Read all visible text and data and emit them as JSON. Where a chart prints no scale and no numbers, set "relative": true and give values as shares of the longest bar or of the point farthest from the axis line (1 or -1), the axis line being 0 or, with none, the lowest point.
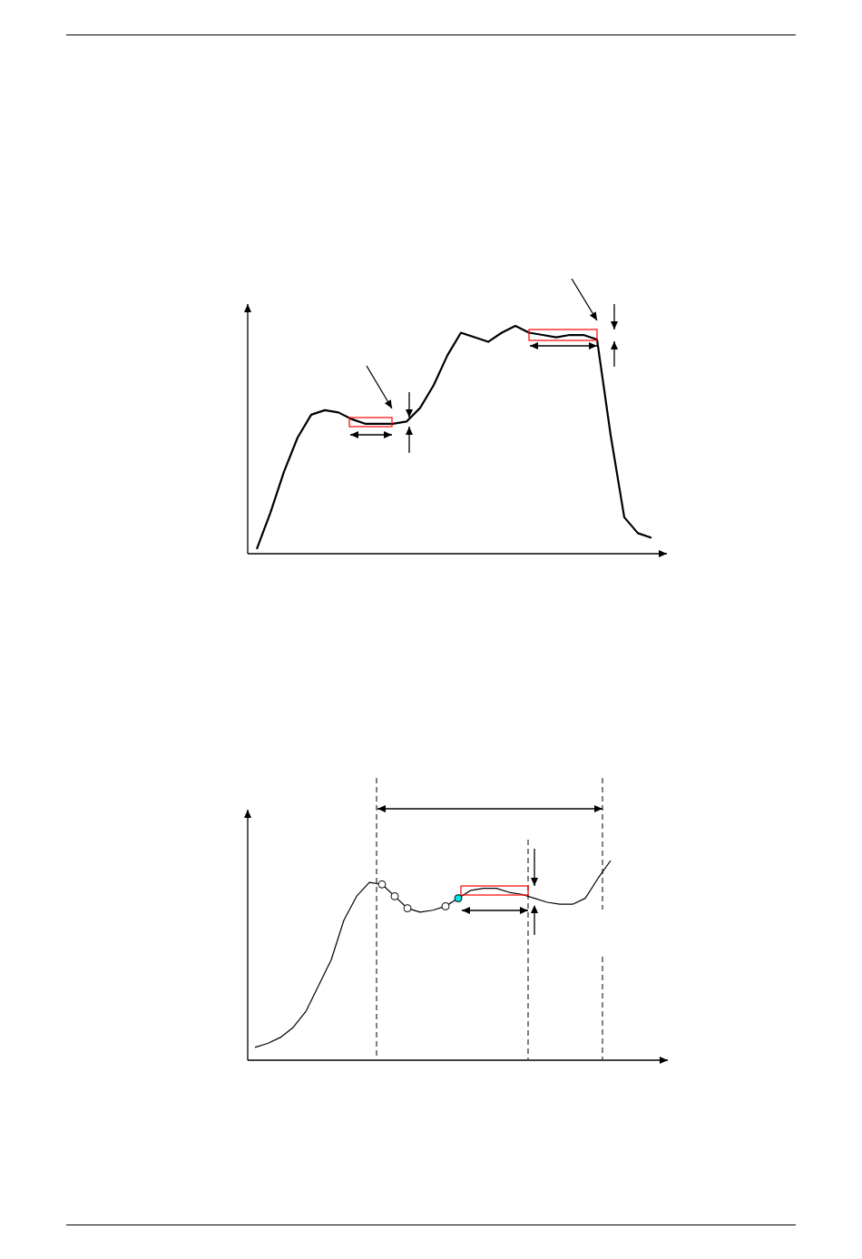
{
  "chart_data": [
    {
      "type": "line",
      "relative": true,
      "categories": [
        null,
        null,
        null,
        null,
        null,
        null,
        null,
        null,
        null,
        null,
        null,
        null,
        null,
        null,
        null,
        null,
        null,
        null,
        null,
        null,
        null,
        null,
        null,
        null,
        null,
        null,
        null,
        null,
        null,
        null
      ],
      "series": [
        {
          "color": "#000000",
          "values": [
            0.02,
            0.18,
            0.36,
            0.51,
            0.61,
            0.63,
            0.62,
            0.59,
            0.57,
            0.57,
            0.57,
            0.58,
            0.64,
            0.74,
            0.87,
            0.97,
            0.95,
            0.93,
            0.97,
            1.0,
            0.97,
            0.96,
            0.95,
            0.96,
            0.96,
            0.94,
            0.52,
            0.16,
            0.09,
            0.07
          ]
        }
      ]
    },
    {
      "type": "line",
      "relative": true,
      "categories": [
        null,
        null,
        null,
        null,
        null,
        null,
        null,
        null,
        null,
        null,
        null,
        null,
        null,
        null,
        null,
        null,
        null,
        null,
        null,
        null,
        null,
        null,
        null,
        null,
        null,
        null,
        null,
        null,
        null
      ],
      "series": [
        {
          "color": "#000000",
          "values": [
            0.06,
            0.08,
            0.11,
            0.16,
            0.24,
            0.37,
            0.5,
            0.7,
            0.82,
            0.89,
            0.88,
            0.82,
            0.76,
            0.74,
            0.75,
            0.77,
            0.81,
            0.85,
            0.86,
            0.86,
            0.84,
            0.83,
            0.81,
            0.79,
            0.78,
            0.78,
            0.81,
            0.91,
            1.0
          ]
        }
      ]
    }
  ]
}
